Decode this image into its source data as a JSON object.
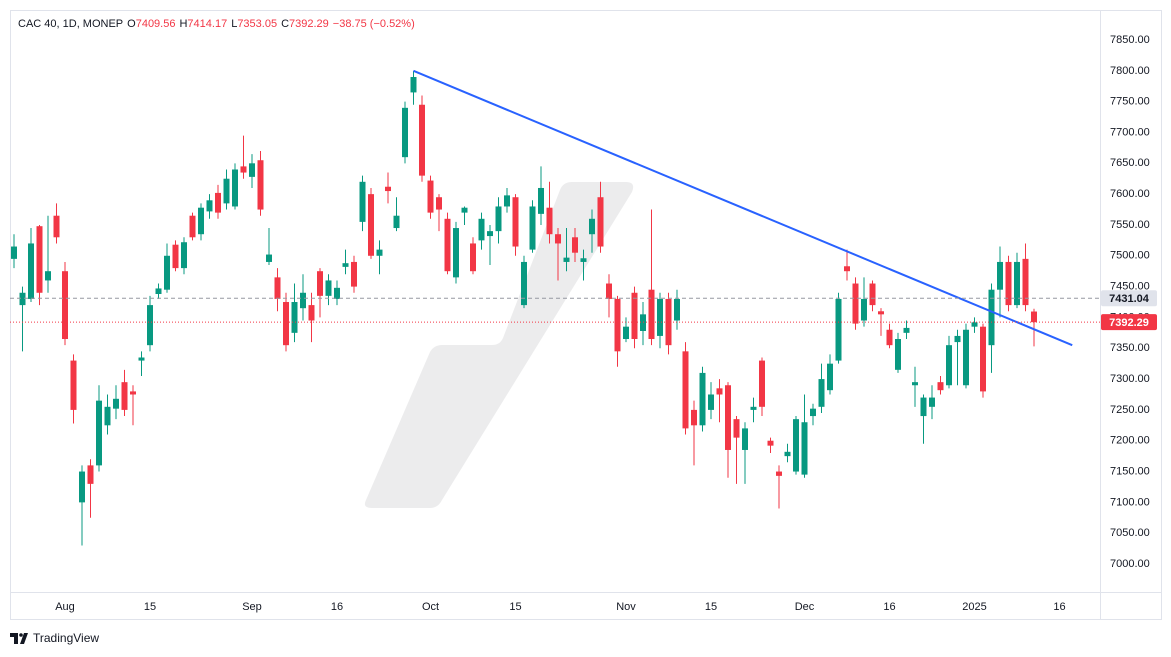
{
  "header": {
    "symbol": "CAC 40, 1D, MONEP",
    "color": "#f23645",
    "ohlc": [
      {
        "label": "O",
        "value": 7409.56
      },
      {
        "label": "H",
        "value": 7414.17
      },
      {
        "label": "L",
        "value": 7353.05
      },
      {
        "label": "C",
        "value": 7392.29
      }
    ],
    "change": "−38.75 (−0.52%)"
  },
  "footer": {
    "brand": "TradingView"
  },
  "chart_data": {
    "type": "candlestick",
    "up_color": "#089981",
    "down_color": "#f23645",
    "grid": false,
    "categories": [
      null,
      null,
      null,
      null,
      null,
      null,
      "Aug",
      null,
      null,
      null,
      null,
      null,
      null,
      null,
      null,
      null,
      "15",
      null,
      null,
      null,
      null,
      null,
      null,
      null,
      null,
      null,
      null,
      null,
      "Sep",
      null,
      null,
      null,
      null,
      null,
      null,
      null,
      null,
      null,
      "16",
      null,
      null,
      null,
      null,
      null,
      null,
      null,
      null,
      null,
      null,
      "Oct",
      null,
      null,
      null,
      null,
      null,
      null,
      null,
      null,
      null,
      "15",
      null,
      null,
      null,
      null,
      null,
      null,
      null,
      null,
      null,
      null,
      null,
      null,
      "Nov",
      null,
      null,
      null,
      null,
      null,
      null,
      null,
      null,
      null,
      "15",
      null,
      null,
      null,
      null,
      null,
      null,
      null,
      null,
      null,
      null,
      "Dec",
      null,
      null,
      null,
      null,
      null,
      null,
      null,
      null,
      null,
      "16",
      null,
      null,
      null,
      null,
      null,
      null,
      null,
      null,
      null,
      "2025",
      null,
      null,
      null,
      null,
      null,
      null,
      null,
      null,
      null,
      "16"
    ],
    "open": [
      7495,
      7420,
      7430,
      7548,
      7460,
      7565,
      7475,
      7330,
      7100,
      7160,
      7160,
      7225,
      7252,
      7295,
      7280,
      7330,
      7355,
      7438,
      7445,
      7518,
      7480,
      7565,
      7535,
      7572,
      7602,
      7585,
      7580,
      7645,
      7628,
      7655,
      7490,
      7465,
      7425,
      7375,
      7415,
      7420,
      7475,
      7435,
      7430,
      7482,
      7490,
      7555,
      7600,
      7500,
      7612,
      7545,
      7660,
      7765,
      7745,
      7622,
      7595,
      7560,
      7465,
      7570,
      7520,
      7525,
      7532,
      7540,
      7580,
      7595,
      7420,
      7510,
      7568,
      7578,
      7535,
      7490,
      7530,
      7490,
      7535,
      7595,
      7455,
      7430,
      7365,
      7440,
      7378,
      7445,
      7370,
      7430,
      7395,
      7345,
      7250,
      7225,
      7250,
      7285,
      7290,
      7235,
      7185,
      7250,
      7330,
      7200,
      7150,
      7175,
      7150,
      7145,
      7240,
      7255,
      7282,
      7330,
      7483,
      7455,
      7395,
      7455,
      7410,
      7380,
      7315,
      7375,
      7290,
      7240,
      7255,
      7295,
      7290,
      7360,
      7290,
      7385,
      7385,
      7355,
      7445,
      7490,
      7420,
      7495,
      7409.56,
      null,
      null,
      null
    ],
    "high": [
      7535,
      7450,
      7545,
      7550,
      7565,
      7585,
      7490,
      7340,
      7160,
      7170,
      7290,
      7275,
      7290,
      7315,
      7290,
      7345,
      7435,
      7455,
      7520,
      7525,
      7530,
      7570,
      7585,
      7600,
      7615,
      7640,
      7650,
      7695,
      7665,
      7670,
      7545,
      7480,
      7440,
      7455,
      7470,
      7440,
      7480,
      7470,
      7460,
      7510,
      7500,
      7630,
      7610,
      7525,
      7635,
      7595,
      7750,
      7800,
      7760,
      7630,
      7600,
      7570,
      7555,
      7580,
      7530,
      7570,
      7550,
      7595,
      7610,
      7600,
      7500,
      7590,
      7645,
      7620,
      7545,
      7545,
      7545,
      7510,
      7575,
      7620,
      7470,
      7435,
      7400,
      7450,
      7425,
      7575,
      7440,
      7440,
      7445,
      7360,
      7265,
      7320,
      7295,
      7300,
      7295,
      7240,
      7230,
      7270,
      7335,
      7205,
      7160,
      7195,
      7240,
      7275,
      7260,
      7325,
      7340,
      7440,
      7510,
      7465,
      7465,
      7460,
      7415,
      7390,
      7375,
      7395,
      7320,
      7275,
      7290,
      7305,
      7370,
      7380,
      7390,
      7400,
      7390,
      7455,
      7515,
      7500,
      7505,
      7520,
      7414.17,
      null,
      null,
      null
    ],
    "low": [
      7480,
      7345,
      7425,
      7420,
      7440,
      7520,
      7355,
      7228,
      7030,
      7075,
      7150,
      7210,
      7235,
      7240,
      7225,
      7305,
      7345,
      7430,
      7440,
      7475,
      7470,
      7525,
      7525,
      7560,
      7560,
      7575,
      7575,
      7625,
      7610,
      7565,
      7485,
      7410,
      7345,
      7360,
      7395,
      7360,
      7400,
      7420,
      7420,
      7470,
      7440,
      7540,
      7495,
      7470,
      7585,
      7540,
      7650,
      7745,
      7620,
      7560,
      7540,
      7470,
      7455,
      7550,
      7470,
      7510,
      7485,
      7520,
      7570,
      7500,
      7415,
      7505,
      7550,
      7520,
      7460,
      7475,
      7490,
      7460,
      7505,
      7505,
      7400,
      7320,
      7360,
      7350,
      7355,
      7355,
      7350,
      7340,
      7380,
      7210,
      7160,
      7215,
      7235,
      7230,
      7140,
      7130,
      7130,
      7230,
      7240,
      7180,
      7090,
      7165,
      7145,
      7140,
      7225,
      7245,
      7275,
      7325,
      7460,
      7380,
      7385,
      7410,
      7370,
      7350,
      7310,
      7365,
      7255,
      7195,
      7235,
      7275,
      7285,
      7290,
      7285,
      7375,
      7270,
      7310,
      7400,
      7410,
      7415,
      7410,
      7353.05,
      null,
      null,
      null
    ],
    "close": [
      7515,
      7440,
      7520,
      7440,
      7475,
      7530,
      7365,
      7250,
      7150,
      7130,
      7265,
      7255,
      7268,
      7250,
      7275,
      7335,
      7420,
      7447,
      7500,
      7480,
      7522,
      7530,
      7578,
      7590,
      7570,
      7625,
      7640,
      7635,
      7650,
      7575,
      7502,
      7430,
      7355,
      7425,
      7440,
      7395,
      7435,
      7460,
      7448,
      7488,
      7450,
      7620,
      7500,
      7510,
      7605,
      7565,
      7740,
      7790,
      7630,
      7570,
      7575,
      7475,
      7545,
      7578,
      7475,
      7560,
      7540,
      7580,
      7598,
      7515,
      7490,
      7580,
      7610,
      7535,
      7520,
      7497,
      7505,
      7496,
      7560,
      7515,
      7430,
      7345,
      7385,
      7365,
      7405,
      7365,
      7430,
      7355,
      7430,
      7220,
      7225,
      7310,
      7275,
      7275,
      7185,
      7205,
      7220,
      7255,
      7255,
      7192,
      7143,
      7182,
      7235,
      7230,
      7252,
      7300,
      7325,
      7430,
      7475,
      7390,
      7430,
      7420,
      7405,
      7355,
      7365,
      7383,
      7295,
      7270,
      7270,
      7282,
      7355,
      7370,
      7380,
      7392,
      7280,
      7445,
      7490,
      7420,
      7490,
      7420,
      7392.29,
      null,
      null,
      null
    ],
    "ylim": [
      6954.6,
      7898.7
    ],
    "yticks": [
      {
        "value": 7000,
        "label": "7000.00"
      },
      {
        "value": 7050,
        "label": "7050.00"
      },
      {
        "value": 7100,
        "label": "7100.00"
      },
      {
        "value": 7150,
        "label": "7150.00"
      },
      {
        "value": 7200,
        "label": "7200.00"
      },
      {
        "value": 7250,
        "label": "7250.00"
      },
      {
        "value": 7300,
        "label": "7300.00"
      },
      {
        "value": 7350,
        "label": "7350.00"
      },
      {
        "value": 7400,
        "label": "7400.00"
      },
      {
        "value": 7450,
        "label": "7450.00"
      },
      {
        "value": 7500,
        "label": "7500.00"
      },
      {
        "value": 7550,
        "label": "7550.00"
      },
      {
        "value": 7600,
        "label": "7600.00"
      },
      {
        "value": 7650,
        "label": "7650.00"
      },
      {
        "value": 7700,
        "label": "7700.00"
      },
      {
        "value": 7750,
        "label": "7750.00"
      },
      {
        "value": 7800,
        "label": "7800.00"
      },
      {
        "value": 7850,
        "label": "7850.00"
      }
    ],
    "price_lines": [
      {
        "value": 7431.04,
        "color": "#9598a1",
        "box_color": "#e0e3eb",
        "text_color": "#131722",
        "style": "dashed"
      },
      {
        "value": 7392.29,
        "color": "#f23645",
        "box_color": "#f23645",
        "text_color": "#ffffff",
        "style": "dotted"
      }
    ],
    "trendline": {
      "x": [
        47,
        124.5
      ],
      "values": [
        7800,
        7355
      ],
      "color": "#2962ff"
    }
  }
}
